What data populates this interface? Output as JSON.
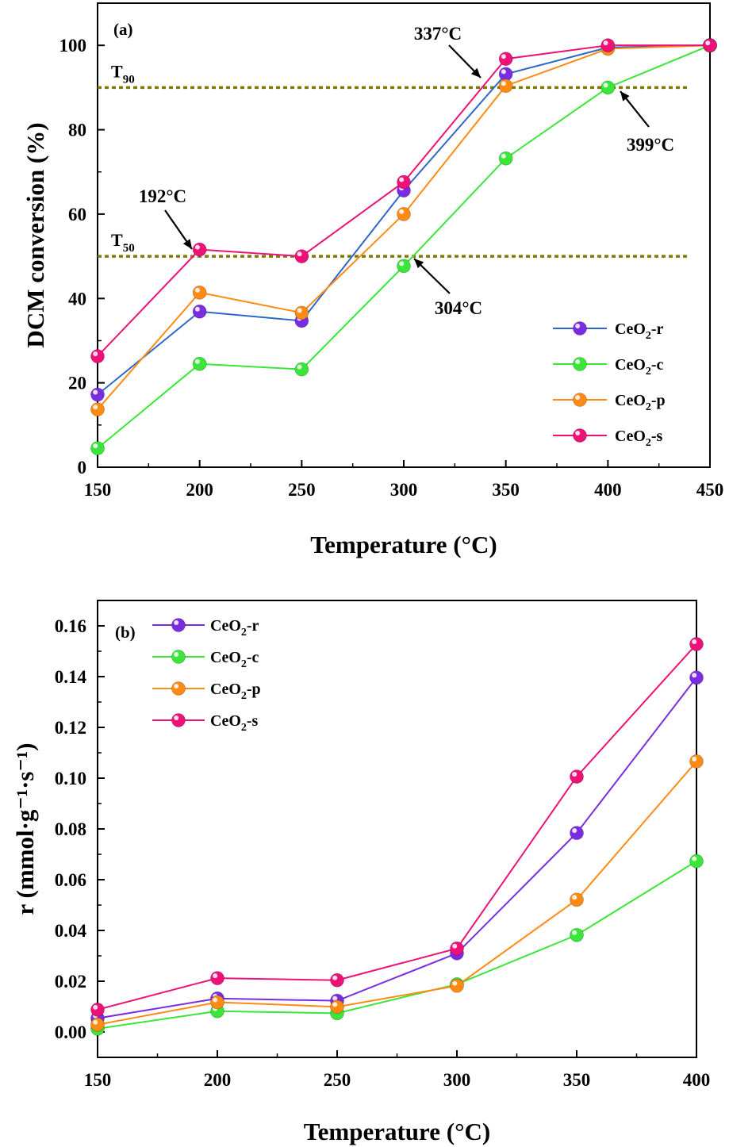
{
  "colors": {
    "CeO2-r": "#7a2de0",
    "CeO2-c": "#39e639",
    "CeO2-p": "#ff8a14",
    "CeO2-s": "#ee1177",
    "CeO2-r_line_a": "#2e67c7",
    "threshold": "#7f7b00"
  },
  "chart_data": [
    {
      "type": "line",
      "panel_label": "(a)",
      "xlabel": "Temperature (°C)",
      "ylabel": "DCM conversion (%)",
      "x": [
        150,
        200,
        250,
        300,
        350,
        400,
        450
      ],
      "xlim": [
        150,
        450
      ],
      "ylim": [
        0,
        110
      ],
      "xticks": [
        "150",
        "200",
        "250",
        "300",
        "350",
        "400",
        "450"
      ],
      "yticks": [
        "0",
        "20",
        "40",
        "60",
        "80",
        "100"
      ],
      "legend_position": "bottom-right",
      "series": [
        {
          "name": "CeO2-r",
          "values": [
            17.2,
            36.9,
            34.7,
            65.6,
            93.2,
            99.5,
            100
          ]
        },
        {
          "name": "CeO2-c",
          "values": [
            4.5,
            24.5,
            23.2,
            47.7,
            73.2,
            90,
            100
          ]
        },
        {
          "name": "CeO2-p",
          "values": [
            13.7,
            41.4,
            36.6,
            60,
            90.4,
            99.2,
            100
          ]
        },
        {
          "name": "CeO2-s",
          "values": [
            26.3,
            51.6,
            50,
            67.6,
            96.8,
            100,
            100
          ]
        }
      ],
      "thresholds": [
        {
          "label": "T",
          "sub": "90",
          "y": 90
        },
        {
          "label": "T",
          "sub": "50",
          "y": 50
        }
      ],
      "annotations": [
        {
          "text": "337°C",
          "x": 337,
          "y": 90
        },
        {
          "text": "399°C",
          "x": 399,
          "y": 90
        },
        {
          "text": "192°C",
          "x": 192,
          "y": 50
        },
        {
          "text": "304°C",
          "x": 304,
          "y": 50
        }
      ]
    },
    {
      "type": "line",
      "panel_label": "(b)",
      "xlabel": "Temperature (°C)",
      "ylabel": "r (mmol·g⁻¹·s⁻¹)",
      "x": [
        150,
        200,
        250,
        300,
        350,
        400
      ],
      "xlim": [
        150,
        400
      ],
      "ylim": [
        -0.01,
        0.17
      ],
      "xticks": [
        "150",
        "200",
        "250",
        "300",
        "350",
        "400"
      ],
      "yticks": [
        "0.00",
        "0.02",
        "0.04",
        "0.06",
        "0.08",
        "0.10",
        "0.12",
        "0.14",
        "0.16"
      ],
      "legend_position": "top-left",
      "series": [
        {
          "name": "CeO2-r",
          "values": [
            0.0054,
            0.0132,
            0.0123,
            0.031,
            0.0784,
            0.1396
          ]
        },
        {
          "name": "CeO2-c",
          "values": [
            0.0013,
            0.0082,
            0.0074,
            0.0188,
            0.0382,
            0.0673
          ]
        },
        {
          "name": "CeO2-p",
          "values": [
            0.0029,
            0.0117,
            0.0099,
            0.0182,
            0.0521,
            0.1066
          ]
        },
        {
          "name": "CeO2-s",
          "values": [
            0.0088,
            0.0212,
            0.0204,
            0.0329,
            0.1006,
            0.1528
          ]
        }
      ]
    }
  ]
}
